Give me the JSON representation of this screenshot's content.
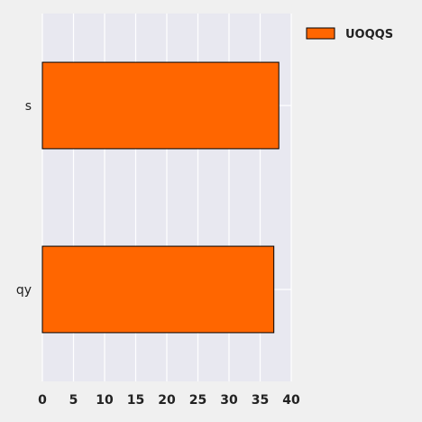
{
  "chart_data": {
    "type": "bar",
    "orientation": "horizontal",
    "categories": [
      "s",
      "qy"
    ],
    "series": [
      {
        "name": "UOQQS",
        "values": [
          38,
          37.2
        ]
      }
    ],
    "xlim": [
      0,
      40
    ],
    "xticks": [
      0,
      5,
      10,
      15,
      20,
      25,
      30,
      35,
      40
    ],
    "grid": true,
    "legend_position": "top-right",
    "colors": {
      "bar": "#ff6600",
      "bar_edge": "#000000",
      "plot_bg": "#e8e8f0",
      "grid": "#ffffff"
    }
  }
}
